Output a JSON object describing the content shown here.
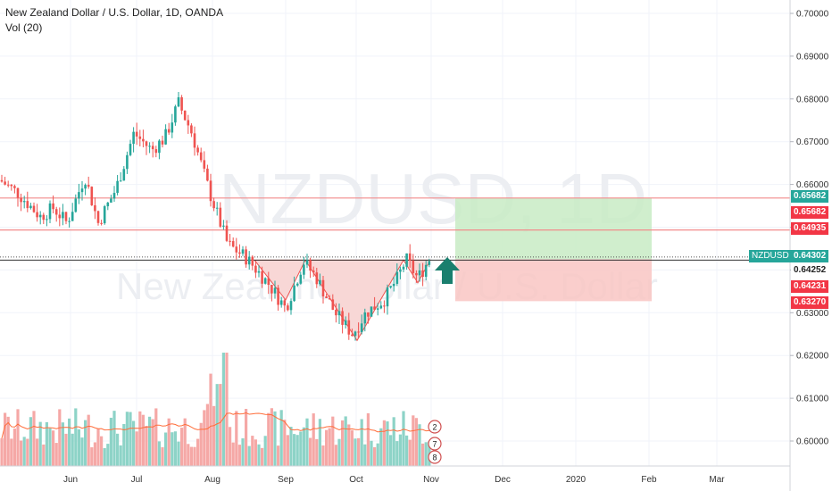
{
  "header": {
    "title": "New Zealand Dollar / U.S. Dollar, 1D, OANDA",
    "indicator": "Vol (20)"
  },
  "watermark": {
    "symbol": "NZDUSD, 1D",
    "description": "New Zealand Dollar / U.S. Dollar"
  },
  "colors": {
    "up": "#26a69a",
    "down": "#ef5350",
    "vol_up": "#8dd3c7",
    "vol_down": "#f5a8a6",
    "ma": "#ff6d3a",
    "target_zone": "#c8ebc4",
    "stop_zone": "#f9c5c3",
    "resistance_line": "#f28c8c",
    "arrow": "#1a7f6e",
    "pattern_fill": "#f8d7d6"
  },
  "price_axis": {
    "ticks": [
      "0.70000",
      "0.69000",
      "0.68000",
      "0.67000",
      "0.66000",
      "0.65000",
      "0.64000",
      "0.63000",
      "0.62000",
      "0.61000",
      "0.60000"
    ],
    "tick_values": [
      0.7,
      0.69,
      0.68,
      0.67,
      0.66,
      0.65,
      0.64,
      0.63,
      0.62,
      0.61,
      0.6
    ]
  },
  "price_labels": {
    "target": "0.65682",
    "resistance_top": "0.65682",
    "resistance": "0.64935",
    "symbol": "NZDUSD",
    "current": "0.64302",
    "entry": "0.64252",
    "neckline": "0.64231",
    "stop": "0.63270"
  },
  "time_axis": {
    "labels": [
      "Jun",
      "Jul",
      "Aug",
      "Sep",
      "Oct",
      "Nov",
      "Dec",
      "2020",
      "Feb",
      "Mar"
    ]
  },
  "chart_data": {
    "type": "candlestick",
    "y_range": [
      0.595,
      0.705
    ],
    "levels": [
      0.65682,
      0.64935,
      0.64302,
      0.64252,
      0.64231,
      0.6327
    ],
    "position": {
      "entry": 0.64252,
      "target": 0.65682,
      "stop": 0.6327
    }
  },
  "event_badges": [
    "2",
    "7",
    "8"
  ]
}
